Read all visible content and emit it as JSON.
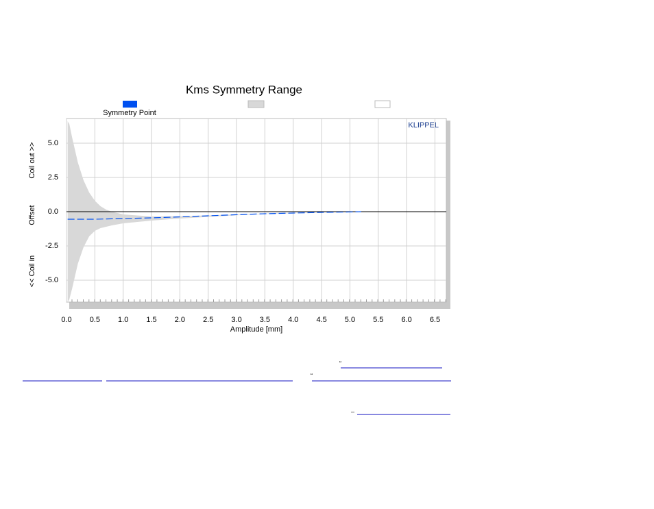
{
  "chart_data": {
    "type": "area-band-line",
    "title": "Kms Symmetry Range",
    "xlabel": "Amplitude [mm]",
    "ylabels": [
      "Coil out >>",
      "Offset",
      "<< Coil in"
    ],
    "annotation": "KLIPPEL",
    "x": [
      0.02,
      0.05,
      0.1,
      0.2,
      0.3,
      0.4,
      0.5,
      0.6,
      0.7,
      0.8,
      1.0,
      1.5,
      2.0,
      2.5,
      3.0,
      3.5,
      4.0,
      4.5,
      5.0,
      5.2
    ],
    "series": [
      {
        "name": "Symmetry Point",
        "color": "#0050f0",
        "values": [
          -0.55,
          -0.55,
          -0.55,
          -0.55,
          -0.55,
          -0.55,
          -0.55,
          -0.54,
          -0.53,
          -0.52,
          -0.5,
          -0.45,
          -0.38,
          -0.3,
          -0.22,
          -0.15,
          -0.1,
          -0.05,
          -0.02,
          0
        ]
      },
      {
        "color": "#d8d8d8",
        "upper": [
          6.6,
          6.4,
          5.4,
          3.6,
          2.3,
          1.4,
          0.8,
          0.4,
          0.15,
          0.0,
          -0.2,
          -0.35,
          -0.33,
          -0.27,
          -0.2,
          -0.14,
          -0.09,
          -0.05,
          -0.02,
          0
        ],
        "lower": [
          -6.6,
          -6.4,
          -5.6,
          -3.8,
          -2.6,
          -1.8,
          -1.4,
          -1.2,
          -1.1,
          -1.0,
          -0.85,
          -0.65,
          -0.5,
          -0.38,
          -0.26,
          -0.17,
          -0.11,
          -0.06,
          -0.02,
          0
        ]
      }
    ],
    "xlim": [
      0,
      6.7
    ],
    "ylim": [
      -6.6,
      6.8
    ],
    "xticks": [
      {
        "value": 0,
        "label": "0.0"
      },
      0.5,
      {
        "value": 1,
        "label": "1.0"
      },
      1.5,
      {
        "value": 2,
        "label": "2.0"
      },
      2.5,
      {
        "value": 3,
        "label": "3.0"
      },
      3.5,
      {
        "value": 4,
        "label": "4.0"
      },
      4.5,
      {
        "value": 5,
        "label": "5.0"
      },
      5.5,
      {
        "value": 6,
        "label": "6.0"
      },
      6.5
    ],
    "yticks": [
      {
        "value": 5,
        "label": "5.0"
      },
      2.5,
      {
        "value": 0,
        "label": "0.0"
      },
      -2.5,
      {
        "value": -5,
        "label": "-5.0"
      }
    ],
    "grid": true
  },
  "footer_marks": [
    "“",
    "“",
    "–"
  ]
}
